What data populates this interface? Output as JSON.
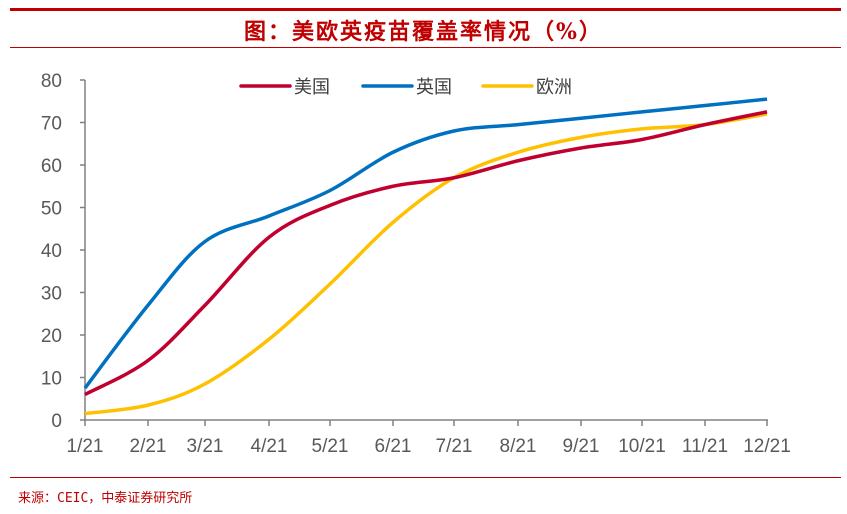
{
  "header": {
    "title": "图：美欧英疫苗覆盖率情况（%）"
  },
  "footer": {
    "source": "来源：CEIC，中泰证券研究所"
  },
  "colors": {
    "accent": "#c00000",
    "us": "#c0002f",
    "uk": "#0070c0",
    "eu": "#ffc000",
    "axis": "#808080"
  },
  "chart_data": {
    "type": "line",
    "title": "美欧英疫苗覆盖率情况（%）",
    "xlabel": "",
    "ylabel": "",
    "ylim": [
      0,
      80
    ],
    "yticks": [
      "0",
      "10",
      "20",
      "30",
      "40",
      "50",
      "60",
      "70",
      "80"
    ],
    "categories": [
      "1/21",
      "2/21",
      "3/21",
      "4/21",
      "5/21",
      "6/21",
      "7/21",
      "8/21",
      "9/21",
      "10/21",
      "11/21",
      "12/21"
    ],
    "grid": false,
    "legend_position": "top",
    "series": [
      {
        "name": "美国",
        "color": "#c0002f",
        "values": [
          6,
          14,
          27,
          43,
          50.5,
          55,
          57,
          61,
          64,
          66,
          69.5,
          72.5
        ]
      },
      {
        "name": "英国",
        "color": "#0070c0",
        "values": [
          7.5,
          27,
          42,
          48,
          54,
          63,
          68,
          69.5,
          71,
          72.5,
          74,
          75.5
        ]
      },
      {
        "name": "欧洲",
        "color": "#ffc000",
        "values": [
          1.5,
          3.5,
          8.5,
          19,
          32,
          46.5,
          57,
          63,
          66.5,
          68.5,
          69.5,
          72
        ]
      }
    ]
  },
  "legend": {
    "us": "美国",
    "uk": "英国",
    "eu": "欧洲"
  }
}
